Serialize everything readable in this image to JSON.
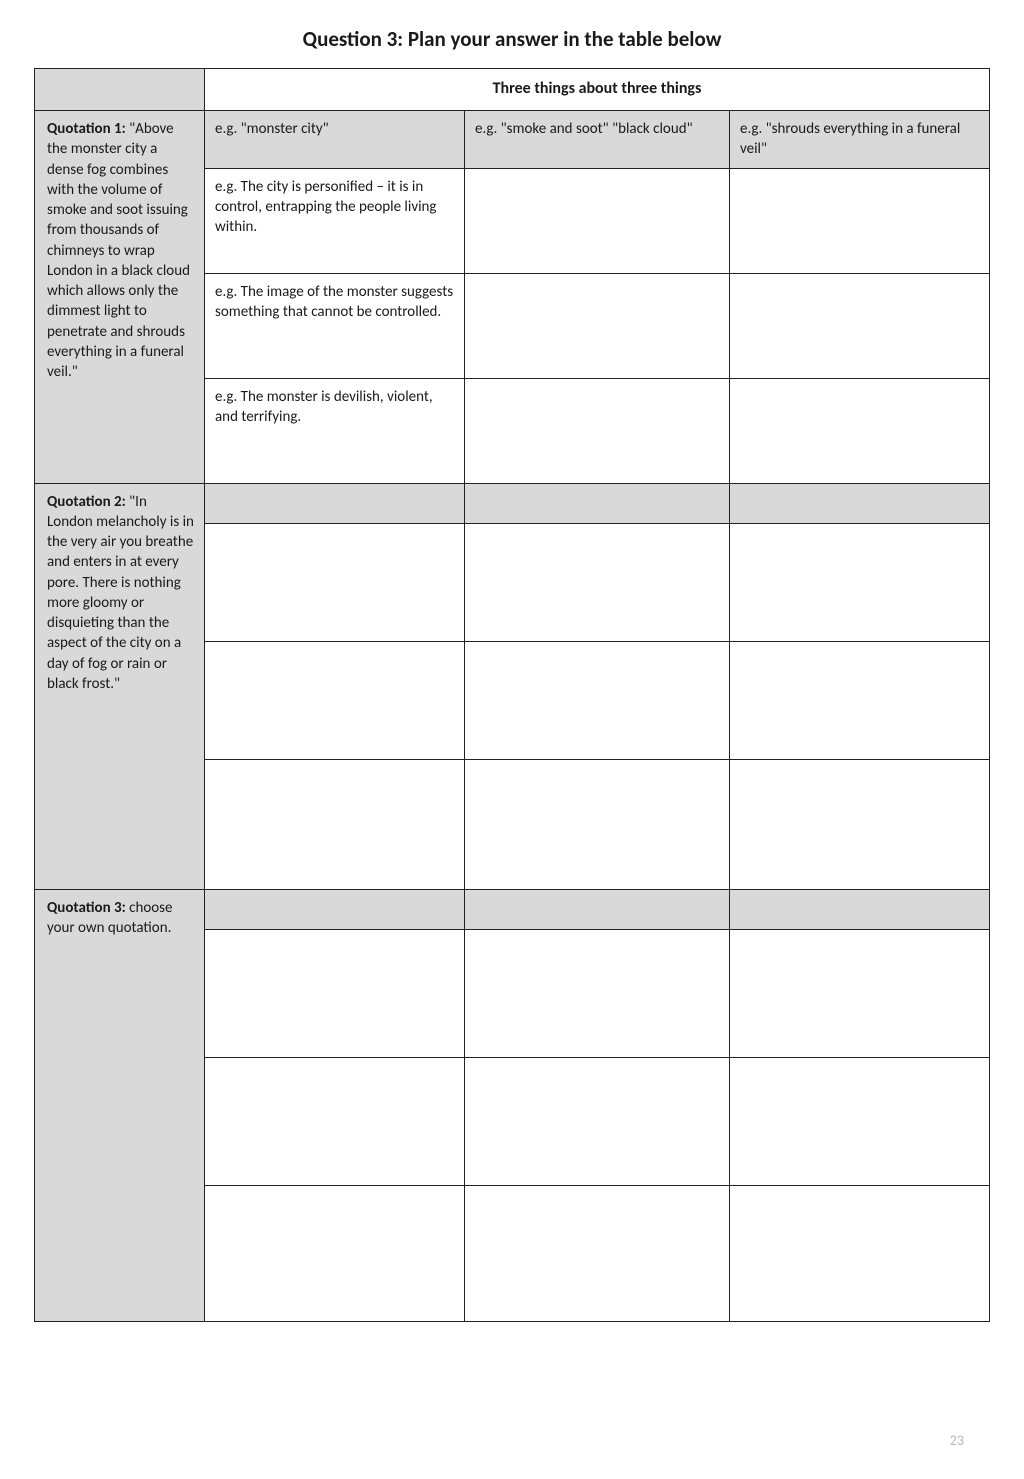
{
  "page": {
    "title": "Question 3: Plan your answer in the table below",
    "number": "23",
    "background": "#ffffff",
    "shade": "#d9d9d9",
    "border": "#222222"
  },
  "table": {
    "header": "Three things about three things",
    "quotation1": {
      "label": "Quotation 1:",
      "text": " \"Above the monster city a dense fog combines with the volume of smoke and soot issuing from thousands of chimneys to wrap London in a black cloud which allows only the dimmest light to penetrate and shrouds everything in a funeral veil.\"",
      "row1": {
        "c2": "e.g. \"monster city\"",
        "c3": "e.g. \"smoke and soot\" \"black cloud\"",
        "c4": "e.g. \"shrouds everything in a funeral veil\""
      },
      "row2": {
        "c2": "e.g. The city is personified – it is in control, entrapping the people living within.",
        "c3": "",
        "c4": ""
      },
      "row3": {
        "c2": "e.g. The image of the monster suggests something that cannot be controlled.",
        "c3": "",
        "c4": ""
      },
      "row4": {
        "c2": "e.g. The monster is devilish, violent, and terrifying.",
        "c3": "",
        "c4": ""
      }
    },
    "quotation2": {
      "label": "Quotation 2: ",
      "text": "\"In London melancholy is in the very air you breathe and enters in at every pore. There is nothing more gloomy or disquieting than the aspect of the city on a day of fog or rain or black frost.\"",
      "row1": {
        "c2": "",
        "c3": "",
        "c4": ""
      },
      "row2": {
        "c2": "",
        "c3": "",
        "c4": ""
      },
      "row3": {
        "c2": "",
        "c3": "",
        "c4": ""
      },
      "row4": {
        "c2": "",
        "c3": "",
        "c4": ""
      }
    },
    "quotation3": {
      "label": "Quotation 3:",
      "text": " choose your own quotation.",
      "row1": {
        "c2": "",
        "c3": "",
        "c4": ""
      },
      "row2": {
        "c2": "",
        "c3": "",
        "c4": ""
      },
      "row3": {
        "c2": "",
        "c3": "",
        "c4": ""
      },
      "row4": {
        "c2": "",
        "c3": "",
        "c4": ""
      }
    }
  }
}
